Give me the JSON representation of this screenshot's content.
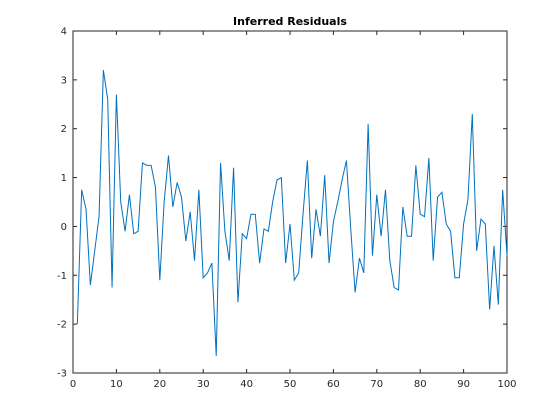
{
  "chart_data": {
    "type": "line",
    "title": "Inferred Residuals",
    "xlabel": "",
    "ylabel": "",
    "xlim": [
      0,
      100
    ],
    "ylim": [
      -3,
      4
    ],
    "xticks": [
      0,
      10,
      20,
      30,
      40,
      50,
      60,
      70,
      80,
      90,
      100
    ],
    "yticks": [
      -3,
      -2,
      -1,
      0,
      1,
      2,
      3,
      4
    ],
    "grid": false,
    "line_color": "#0072BD",
    "series": [
      {
        "x": [
          1,
          2,
          3,
          4,
          5,
          6,
          7,
          8,
          9,
          10,
          11,
          12,
          13,
          14,
          15,
          16,
          17,
          18,
          19,
          20,
          21,
          22,
          23,
          24,
          25,
          26,
          27,
          28,
          29,
          30,
          31,
          32,
          33,
          34,
          35,
          36,
          37,
          38,
          39,
          40,
          41,
          42,
          43,
          44,
          45,
          46,
          47,
          48,
          49,
          50,
          51,
          52,
          53,
          54,
          55,
          56,
          57,
          58,
          59,
          60,
          61,
          62,
          63,
          64,
          65,
          66,
          67,
          68,
          69,
          70,
          71,
          72,
          73,
          74,
          75,
          76,
          77,
          78,
          79,
          80,
          81,
          82,
          83,
          84,
          85,
          86,
          87,
          88,
          89,
          90,
          91,
          92,
          93,
          94,
          95,
          96,
          97,
          98,
          99,
          100
        ],
        "values": [
          -2.0,
          0.75,
          0.35,
          -1.2,
          -0.5,
          0.2,
          3.2,
          2.6,
          -1.25,
          2.7,
          0.5,
          -0.1,
          0.65,
          -0.15,
          -0.1,
          1.3,
          1.25,
          1.25,
          0.8,
          -1.1,
          0.5,
          1.45,
          0.4,
          0.9,
          0.6,
          -0.3,
          0.3,
          -0.7,
          0.75,
          -1.05,
          -0.95,
          -0.75,
          -2.65,
          1.3,
          -0.1,
          -0.7,
          1.2,
          -1.55,
          -0.15,
          -0.25,
          0.25,
          0.25,
          -0.75,
          -0.05,
          -0.1,
          0.5,
          0.95,
          1.0,
          -0.75,
          0.05,
          -1.1,
          -0.95,
          0.25,
          1.35,
          -0.65,
          0.35,
          -0.2,
          1.05,
          -0.75,
          0.1,
          0.5,
          0.95,
          1.35,
          -0.05,
          -1.35,
          -0.65,
          -0.95,
          2.1,
          -0.6,
          0.65,
          -0.2,
          0.75,
          -0.7,
          -1.25,
          -1.3,
          0.4,
          -0.2,
          -0.2,
          1.25,
          0.25,
          0.2,
          1.4,
          -0.7,
          0.6,
          0.7,
          0.05,
          -0.1,
          -1.05,
          -1.05,
          0.05,
          0.55,
          2.3,
          -0.5,
          0.15,
          0.05,
          -1.7,
          -0.4,
          -1.6,
          0.75,
          -0.6
        ]
      }
    ]
  }
}
